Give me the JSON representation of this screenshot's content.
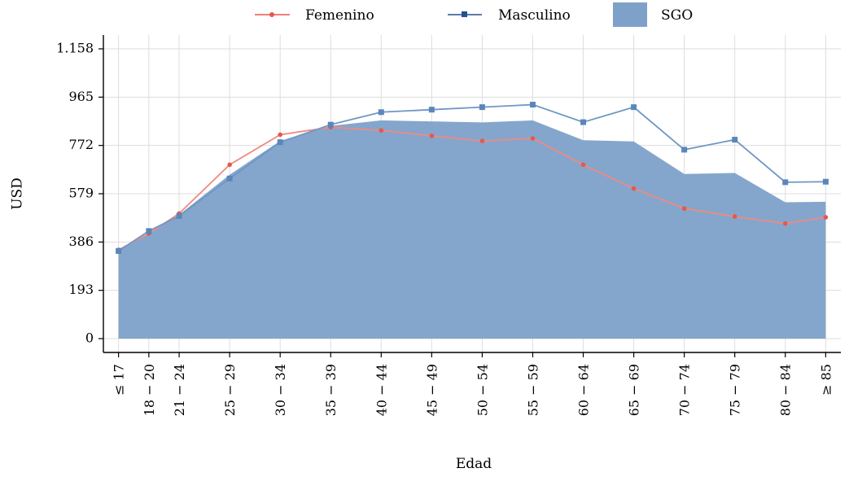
{
  "chart_data": {
    "type": "line",
    "title": "",
    "xlabel": "Edad",
    "ylabel": "USD",
    "ylim": [
      0,
      1158
    ],
    "yticks": [
      0,
      193,
      386,
      579,
      772,
      965,
      1158
    ],
    "ytick_labels": [
      "0",
      "193",
      "386",
      "579",
      "772",
      "965",
      "1.158"
    ],
    "categories": [
      "≤ 17",
      "18 − 20",
      "21 − 24",
      "25 − 29",
      "30 − 34",
      "35 − 39",
      "40 − 44",
      "45 − 49",
      "50 − 54",
      "55 − 59",
      "60 − 64",
      "65 − 69",
      "70 − 74",
      "75 − 79",
      "80 − 84",
      "≥ 85"
    ],
    "x_positions": [
      16,
      19,
      22,
      27,
      32,
      37,
      42,
      47,
      52,
      57,
      62,
      67,
      72,
      77,
      82,
      86
    ],
    "series": [
      {
        "name": "Femenino",
        "kind": "line",
        "color": "#e8574b",
        "values": [
          355,
          420,
          500,
          695,
          815,
          845,
          832,
          810,
          790,
          800,
          695,
          600,
          520,
          488,
          460,
          485
        ]
      },
      {
        "name": "Masculino",
        "kind": "line",
        "color": "#23508f",
        "values": [
          350,
          430,
          490,
          640,
          785,
          855,
          905,
          915,
          925,
          935,
          865,
          925,
          755,
          795,
          625,
          627
        ]
      },
      {
        "name": "SGO",
        "kind": "area",
        "color": "#7ea1c9",
        "values": [
          350,
          425,
          495,
          655,
          790,
          850,
          872,
          868,
          864,
          872,
          793,
          788,
          658,
          662,
          545,
          547
        ]
      }
    ],
    "legend": {
      "placement": "top-center",
      "entries": [
        "Femenino",
        "Masculino",
        "SGO"
      ]
    },
    "grid": true
  }
}
